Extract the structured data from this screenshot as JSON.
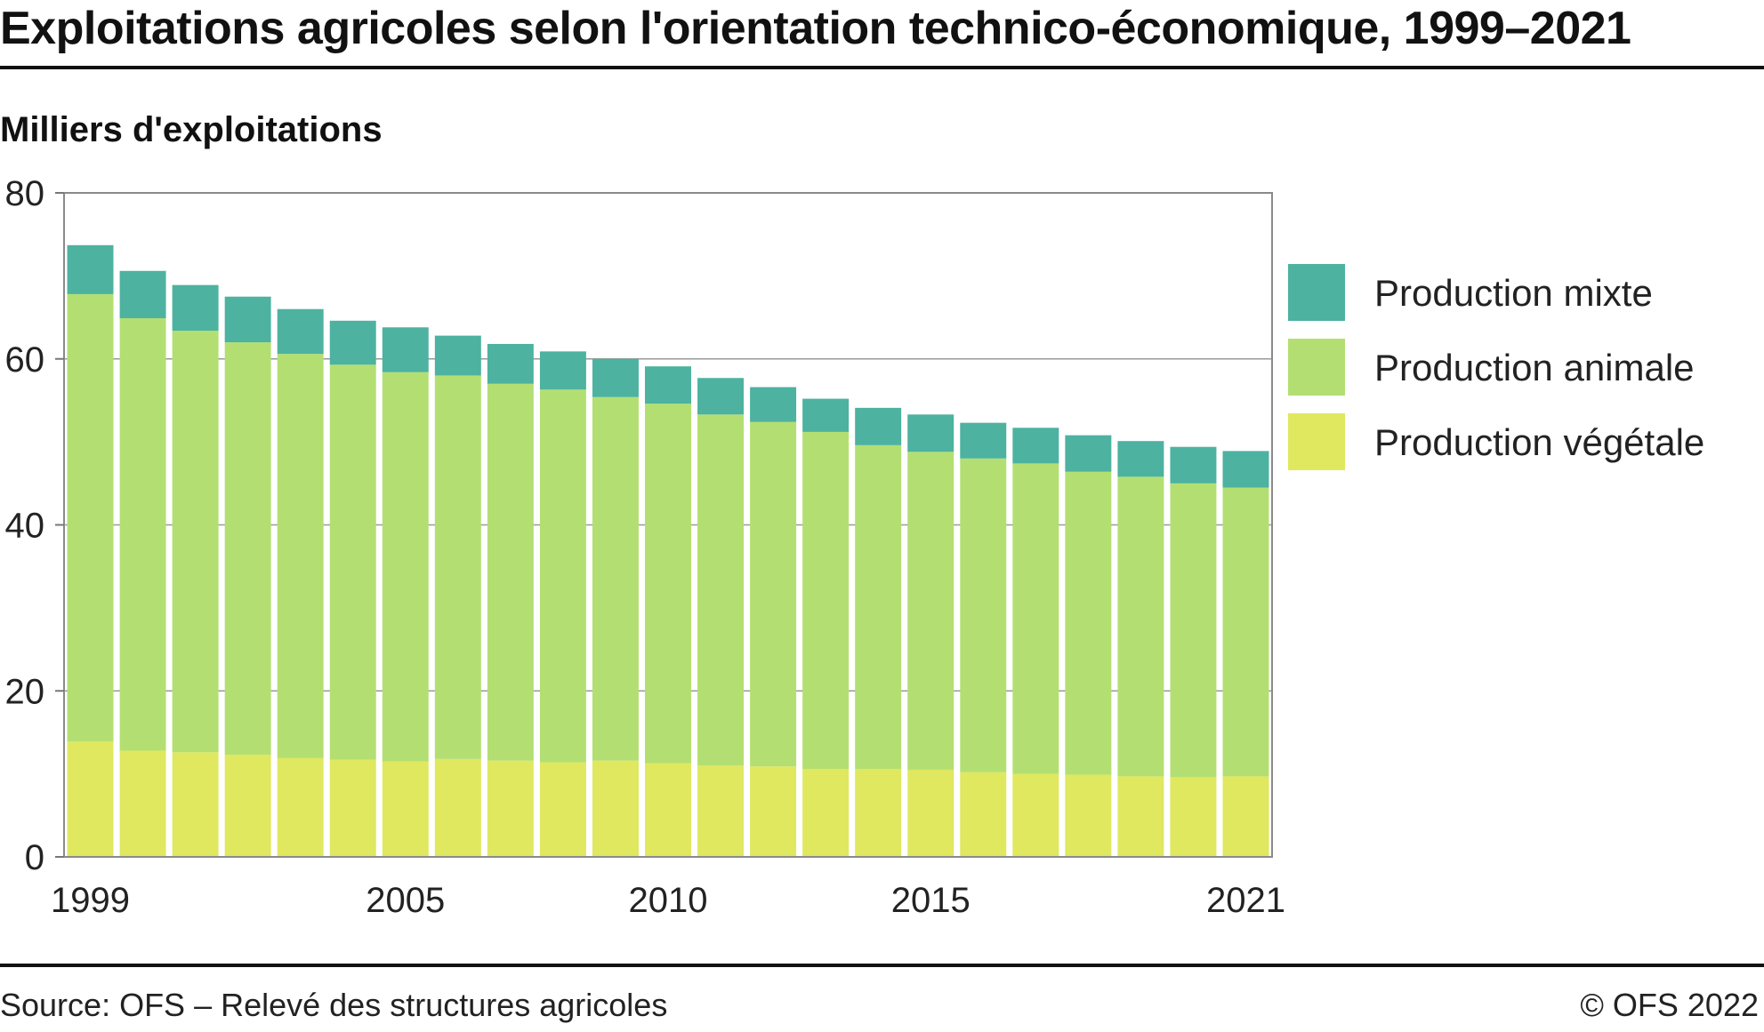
{
  "chart_data": {
    "type": "bar",
    "stacked": true,
    "title": "Exploitations agricoles selon l'orientation technico-économique, 1999–2021",
    "ylabel": "Milliers d'exploitations",
    "ylim": [
      0,
      80
    ],
    "yticks": [
      "0",
      "20",
      "40",
      "60",
      "80"
    ],
    "x": [
      1999,
      2000,
      2001,
      2002,
      2003,
      2004,
      2005,
      2006,
      2007,
      2008,
      2009,
      2010,
      2011,
      2012,
      2013,
      2014,
      2015,
      2016,
      2017,
      2018,
      2019,
      2020,
      2021
    ],
    "xtick_labels": [
      "1999",
      "2005",
      "2010",
      "2015",
      "2021"
    ],
    "grid": true,
    "legend_position": "right",
    "series": [
      {
        "name": "Production végétale",
        "color": "#dfe85f",
        "values": [
          13.9,
          12.8,
          12.6,
          12.3,
          11.9,
          11.7,
          11.5,
          11.8,
          11.6,
          11.4,
          11.6,
          11.3,
          11.0,
          10.9,
          10.6,
          10.6,
          10.5,
          10.2,
          10.0,
          9.9,
          9.7,
          9.6,
          9.7
        ]
      },
      {
        "name": "Production animale",
        "color": "#b3df72",
        "values": [
          53.9,
          52.1,
          50.8,
          49.7,
          48.7,
          47.6,
          46.9,
          46.2,
          45.4,
          44.9,
          43.8,
          43.3,
          42.3,
          41.5,
          40.6,
          39.0,
          38.3,
          37.8,
          37.4,
          36.5,
          36.1,
          35.4,
          34.8
        ]
      },
      {
        "name": "Production mixte",
        "color": "#4db2a0",
        "values": [
          5.9,
          5.7,
          5.5,
          5.5,
          5.4,
          5.3,
          5.4,
          4.8,
          4.8,
          4.6,
          4.6,
          4.5,
          4.4,
          4.2,
          4.0,
          4.5,
          4.5,
          4.3,
          4.3,
          4.4,
          4.3,
          4.4,
          4.4
        ]
      }
    ],
    "legend_order": [
      2,
      1,
      0
    ]
  },
  "source": "Source: OFS – Relevé des structures agricoles",
  "copyright": "© OFS 2022"
}
